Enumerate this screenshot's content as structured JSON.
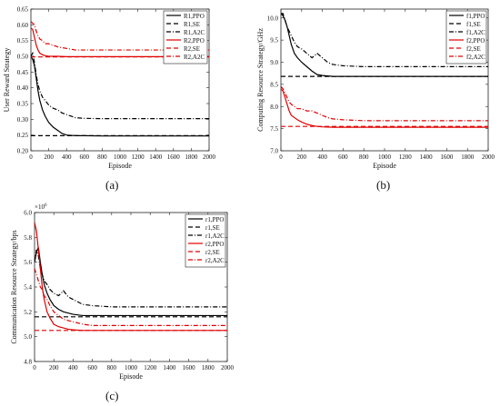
{
  "chart_data": [
    {
      "type": "line",
      "panel_label": "(a)",
      "xlabel": "Episode",
      "ylabel": "User Reward Strategy",
      "xlim": [
        0,
        2000
      ],
      "ylim": [
        0.2,
        0.65
      ],
      "xticks": [
        "0",
        "200",
        "400",
        "600",
        "800",
        "1000",
        "1200",
        "1400",
        "1600",
        "1800",
        "2000"
      ],
      "yticks": [
        "0.20",
        "0.25",
        "0.30",
        "0.35",
        "0.40",
        "0.45",
        "0.50",
        "0.55",
        "0.60",
        "0.65"
      ],
      "ytick_values": [
        0.2,
        0.25,
        0.3,
        0.35,
        0.4,
        0.45,
        0.5,
        0.55,
        0.6,
        0.65
      ],
      "multiplier": "",
      "legend_position": "top-right",
      "series": [
        {
          "name": "R1,PPO",
          "color": "#000000",
          "dash": "solid",
          "x": [
            0,
            20,
            40,
            60,
            80,
            100,
            130,
            160,
            200,
            250,
            300,
            350,
            400,
            500,
            600,
            800,
            1000,
            1500,
            2000
          ],
          "y": [
            0.5,
            0.49,
            0.47,
            0.43,
            0.39,
            0.36,
            0.33,
            0.31,
            0.29,
            0.275,
            0.265,
            0.255,
            0.25,
            0.248,
            0.248,
            0.247,
            0.247,
            0.247,
            0.247
          ]
        },
        {
          "name": "R1,SE",
          "color": "#000000",
          "dash": "dash",
          "x": [
            0,
            2000
          ],
          "y": [
            0.248,
            0.248
          ]
        },
        {
          "name": "R1,A2C",
          "color": "#000000",
          "dash": "dashdot",
          "x": [
            0,
            20,
            40,
            60,
            80,
            100,
            130,
            160,
            200,
            250,
            300,
            350,
            400,
            450,
            500,
            600,
            800,
            1000,
            1500,
            2000
          ],
          "y": [
            0.5,
            0.51,
            0.48,
            0.44,
            0.41,
            0.39,
            0.37,
            0.36,
            0.345,
            0.335,
            0.33,
            0.32,
            0.315,
            0.31,
            0.305,
            0.303,
            0.302,
            0.302,
            0.302,
            0.302
          ]
        },
        {
          "name": "R2,PPO",
          "color": "#e00000",
          "dash": "solid",
          "x": [
            0,
            20,
            40,
            60,
            80,
            100,
            130,
            160,
            200,
            300,
            400,
            600,
            1000,
            2000
          ],
          "y": [
            0.59,
            0.585,
            0.56,
            0.535,
            0.52,
            0.51,
            0.505,
            0.502,
            0.5,
            0.5,
            0.499,
            0.499,
            0.499,
            0.499
          ]
        },
        {
          "name": "R2,SE",
          "color": "#e00000",
          "dash": "dash",
          "x": [
            0,
            2000
          ],
          "y": [
            0.498,
            0.498
          ]
        },
        {
          "name": "R2,A2C",
          "color": "#e00000",
          "dash": "dashdot",
          "x": [
            0,
            20,
            40,
            60,
            80,
            100,
            130,
            160,
            200,
            250,
            300,
            400,
            500,
            600,
            800,
            1000,
            1500,
            2000
          ],
          "y": [
            0.61,
            0.605,
            0.6,
            0.58,
            0.565,
            0.555,
            0.55,
            0.54,
            0.54,
            0.535,
            0.53,
            0.525,
            0.52,
            0.52,
            0.52,
            0.52,
            0.52,
            0.52
          ]
        }
      ]
    },
    {
      "type": "line",
      "panel_label": "(b)",
      "xlabel": "Episode",
      "ylabel": "Computing Resource Strategy/GHz",
      "xlim": [
        0,
        2000
      ],
      "ylim": [
        7.0,
        10.2
      ],
      "xticks": [
        "0",
        "200",
        "400",
        "600",
        "800",
        "1000",
        "1200",
        "1400",
        "1600",
        "1800",
        "2000"
      ],
      "yticks": [
        "7.0",
        "7.5",
        "8.0",
        "8.5",
        "9.0",
        "9.5",
        "10.0"
      ],
      "ytick_values": [
        7.0,
        7.5,
        8.0,
        8.5,
        9.0,
        9.5,
        10.0
      ],
      "multiplier": "",
      "legend_position": "top-right",
      "series": [
        {
          "name": "f1,PPO",
          "color": "#000000",
          "dash": "solid",
          "x": [
            0,
            20,
            40,
            60,
            80,
            100,
            130,
            160,
            200,
            250,
            300,
            350,
            400,
            500,
            600,
            1000,
            2000
          ],
          "y": [
            10.1,
            10.05,
            9.95,
            9.8,
            9.6,
            9.4,
            9.2,
            9.1,
            9.0,
            8.9,
            8.8,
            8.72,
            8.7,
            8.68,
            8.68,
            8.68,
            8.68
          ]
        },
        {
          "name": "f1,SE",
          "color": "#000000",
          "dash": "dash",
          "x": [
            0,
            2000
          ],
          "y": [
            8.68,
            8.68
          ]
        },
        {
          "name": "f1,A2C",
          "color": "#000000",
          "dash": "dashdot",
          "x": [
            0,
            20,
            40,
            60,
            80,
            100,
            130,
            160,
            200,
            250,
            300,
            350,
            400,
            450,
            500,
            600,
            800,
            1000,
            2000
          ],
          "y": [
            10.1,
            10.1,
            9.95,
            9.8,
            9.7,
            9.6,
            9.45,
            9.35,
            9.3,
            9.2,
            9.1,
            9.2,
            9.1,
            9.0,
            8.95,
            8.92,
            8.9,
            8.9,
            8.9
          ]
        },
        {
          "name": "f2,PPO",
          "color": "#e00000",
          "dash": "solid",
          "x": [
            0,
            20,
            40,
            60,
            80,
            100,
            130,
            160,
            200,
            250,
            300,
            350,
            400,
            500,
            600,
            1000,
            2000
          ],
          "y": [
            8.4,
            8.35,
            8.2,
            8.05,
            7.9,
            7.8,
            7.75,
            7.7,
            7.65,
            7.6,
            7.57,
            7.55,
            7.54,
            7.53,
            7.53,
            7.53,
            7.53
          ]
        },
        {
          "name": "f2,SE",
          "color": "#e00000",
          "dash": "dash",
          "x": [
            0,
            2000
          ],
          "y": [
            7.55,
            7.55
          ]
        },
        {
          "name": "f2,A2C",
          "color": "#e00000",
          "dash": "dashdot",
          "x": [
            0,
            20,
            40,
            60,
            80,
            100,
            130,
            160,
            200,
            250,
            300,
            350,
            400,
            450,
            500,
            600,
            800,
            1000,
            2000
          ],
          "y": [
            8.45,
            8.4,
            8.3,
            8.2,
            8.1,
            8.05,
            8.0,
            7.95,
            7.95,
            7.9,
            7.9,
            7.85,
            7.8,
            7.75,
            7.72,
            7.7,
            7.68,
            7.68,
            7.68
          ]
        }
      ]
    },
    {
      "type": "line",
      "panel_label": "(c)",
      "xlabel": "Episode",
      "ylabel": "Communication Resource Strategy/bps",
      "xlim": [
        0,
        2000
      ],
      "ylim": [
        4.8,
        6.0
      ],
      "xticks": [
        "0",
        "200",
        "400",
        "600",
        "800",
        "1000",
        "1200",
        "1400",
        "1600",
        "1800",
        "2000"
      ],
      "yticks": [
        "4.8",
        "5.0",
        "5.2",
        "5.4",
        "5.6",
        "5.8",
        "6.0"
      ],
      "ytick_values": [
        4.8,
        5.0,
        5.2,
        5.4,
        5.6,
        5.8,
        6.0
      ],
      "multiplier": "×10",
      "multiplier_exp": "6",
      "legend_position": "top-right",
      "series": [
        {
          "name": "r1,PPO",
          "color": "#000000",
          "dash": "solid",
          "x": [
            0,
            20,
            40,
            60,
            80,
            100,
            130,
            160,
            200,
            250,
            300,
            350,
            400,
            500,
            600,
            1000,
            2000
          ],
          "y": [
            5.6,
            5.68,
            5.72,
            5.6,
            5.5,
            5.42,
            5.35,
            5.3,
            5.25,
            5.22,
            5.2,
            5.19,
            5.18,
            5.17,
            5.17,
            5.17,
            5.17
          ]
        },
        {
          "name": "r1,SE",
          "color": "#000000",
          "dash": "dash",
          "x": [
            0,
            2000
          ],
          "y": [
            5.16,
            5.16
          ]
        },
        {
          "name": "r1,A2C",
          "color": "#000000",
          "dash": "dashdot",
          "x": [
            0,
            20,
            40,
            60,
            80,
            100,
            130,
            160,
            200,
            250,
            300,
            350,
            400,
            450,
            500,
            600,
            800,
            1000,
            2000
          ],
          "y": [
            5.6,
            5.7,
            5.65,
            5.55,
            5.5,
            5.45,
            5.42,
            5.38,
            5.35,
            5.33,
            5.37,
            5.32,
            5.3,
            5.28,
            5.26,
            5.25,
            5.24,
            5.24,
            5.24
          ]
        },
        {
          "name": "r2,PPO",
          "color": "#e00000",
          "dash": "solid",
          "x": [
            0,
            20,
            40,
            60,
            80,
            100,
            130,
            160,
            200,
            250,
            300,
            350,
            400,
            500,
            600,
            1000,
            2000
          ],
          "y": [
            5.92,
            5.85,
            5.7,
            5.55,
            5.4,
            5.3,
            5.2,
            5.15,
            5.1,
            5.08,
            5.07,
            5.06,
            5.055,
            5.05,
            5.05,
            5.05,
            5.05
          ]
        },
        {
          "name": "r2,SE",
          "color": "#e00000",
          "dash": "dash",
          "x": [
            0,
            2000
          ],
          "y": [
            5.05,
            5.05
          ]
        },
        {
          "name": "r2,A2C",
          "color": "#e00000",
          "dash": "dashdot",
          "x": [
            0,
            20,
            40,
            60,
            80,
            100,
            130,
            160,
            200,
            250,
            300,
            350,
            400,
            450,
            500,
            600,
            800,
            1000,
            2000
          ],
          "y": [
            5.55,
            5.5,
            5.45,
            5.4,
            5.38,
            5.33,
            5.3,
            5.25,
            5.2,
            5.17,
            5.14,
            5.13,
            5.12,
            5.11,
            5.1,
            5.09,
            5.09,
            5.09,
            5.09
          ]
        }
      ]
    }
  ]
}
